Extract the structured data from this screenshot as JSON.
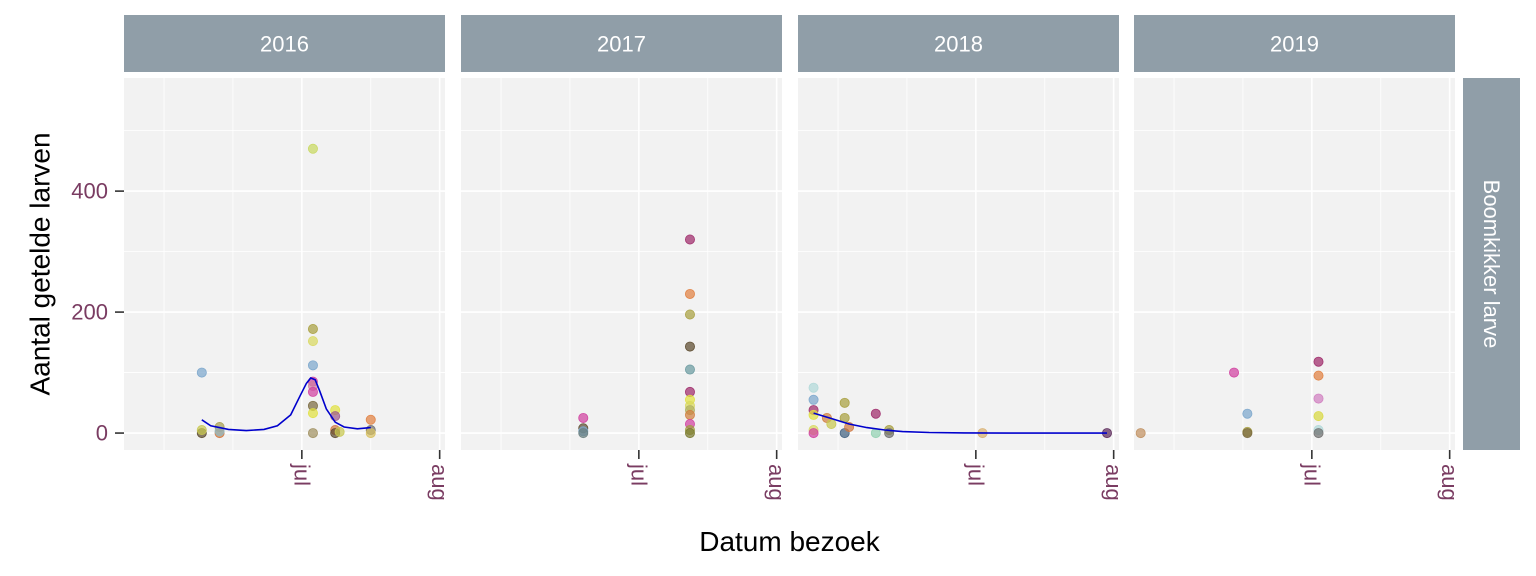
{
  "chart_data": {
    "type": "scatter",
    "xlabel": "Datum bezoek",
    "ylabel": "Aantal getelde larven",
    "facet_row_label": "Boomkikker larve",
    "y_ticks": [
      0,
      200,
      400
    ],
    "y_range": [
      -28,
      587
    ],
    "x_range_day_of_year": [
      142.5,
      214.7
    ],
    "x_tick_labels": [
      {
        "label": "jul",
        "doy": 182.5
      },
      {
        "label": "aug",
        "doy": 213.5
      }
    ],
    "grid": true,
    "colors": {
      "strip_bg": "#909ea8",
      "panel_bg": "#f2f2f2",
      "grid": "#ffffff",
      "tick_label": "#7a3c62",
      "trend": "#0000cc"
    },
    "panels": [
      {
        "year": "2016",
        "points": [
          {
            "doy": 160,
            "y": 100,
            "c": "#7ba6cc"
          },
          {
            "doy": 160,
            "y": 0,
            "c": "#5c4a2e"
          },
          {
            "doy": 160,
            "y": 5,
            "c": "#c8c850"
          },
          {
            "doy": 164,
            "y": 10,
            "c": "#a8a050"
          },
          {
            "doy": 164,
            "y": 0,
            "c": "#d07840"
          },
          {
            "doy": 164,
            "y": 3,
            "c": "#90b8c0"
          },
          {
            "doy": 185,
            "y": 470,
            "c": "#c8d860"
          },
          {
            "doy": 185,
            "y": 172,
            "c": "#a8a040"
          },
          {
            "doy": 185,
            "y": 152,
            "c": "#d8d860"
          },
          {
            "doy": 185,
            "y": 112,
            "c": "#7ba6cc"
          },
          {
            "doy": 185,
            "y": 85,
            "c": "#d040a0"
          },
          {
            "doy": 185,
            "y": 78,
            "c": "#d080a0"
          },
          {
            "doy": 185,
            "y": 68,
            "c": "#d040a0"
          },
          {
            "doy": 185,
            "y": 45,
            "c": "#7a6a40"
          },
          {
            "doy": 185,
            "y": 33,
            "c": "#e0e040"
          },
          {
            "doy": 185,
            "y": 0,
            "c": "#a09060"
          },
          {
            "doy": 190,
            "y": 38,
            "c": "#e0e040"
          },
          {
            "doy": 190,
            "y": 28,
            "c": "#9e5a8a"
          },
          {
            "doy": 190,
            "y": 5,
            "c": "#d07840"
          },
          {
            "doy": 190,
            "y": 0,
            "c": "#5c4a2e"
          },
          {
            "doy": 191,
            "y": 2,
            "c": "#c8c850"
          },
          {
            "doy": 198,
            "y": 22,
            "c": "#e08040"
          },
          {
            "doy": 198,
            "y": 5,
            "c": "#707070"
          },
          {
            "doy": 198,
            "y": 0,
            "c": "#d8c060"
          }
        ],
        "trend": [
          [
            160,
            22
          ],
          [
            162,
            12
          ],
          [
            166,
            6
          ],
          [
            170,
            4
          ],
          [
            174,
            6
          ],
          [
            177,
            12
          ],
          [
            180,
            30
          ],
          [
            182,
            60
          ],
          [
            183.5,
            82
          ],
          [
            184.5,
            91
          ],
          [
            185.5,
            88
          ],
          [
            186.5,
            70
          ],
          [
            188,
            40
          ],
          [
            190,
            18
          ],
          [
            192,
            10
          ],
          [
            195,
            7
          ],
          [
            198,
            9
          ]
        ]
      },
      {
        "year": "2017",
        "points": [
          {
            "doy": 170,
            "y": 25,
            "c": "#d040a0"
          },
          {
            "doy": 170,
            "y": 8,
            "c": "#5c4a2e"
          },
          {
            "doy": 170,
            "y": 3,
            "c": "#7ba6cc"
          },
          {
            "doy": 170,
            "y": 0,
            "c": "#6a8080"
          },
          {
            "doy": 194,
            "y": 320,
            "c": "#9e2a6a"
          },
          {
            "doy": 194,
            "y": 230,
            "c": "#e08040"
          },
          {
            "doy": 194,
            "y": 196,
            "c": "#a8a040"
          },
          {
            "doy": 194,
            "y": 143,
            "c": "#5c4a2e"
          },
          {
            "doy": 194,
            "y": 105,
            "c": "#6a9aa0"
          },
          {
            "doy": 194,
            "y": 68,
            "c": "#9e2a6a"
          },
          {
            "doy": 194,
            "y": 55,
            "c": "#e0e040"
          },
          {
            "doy": 194,
            "y": 45,
            "c": "#d8d860"
          },
          {
            "doy": 194,
            "y": 38,
            "c": "#b0b060"
          },
          {
            "doy": 194,
            "y": 30,
            "c": "#d08040"
          },
          {
            "doy": 194,
            "y": 15,
            "c": "#d040a0"
          },
          {
            "doy": 194,
            "y": 5,
            "c": "#a0a040"
          },
          {
            "doy": 194,
            "y": 0,
            "c": "#7a7a30"
          }
        ],
        "trend": []
      },
      {
        "year": "2018",
        "points": [
          {
            "doy": 146,
            "y": 75,
            "c": "#b0d8d8"
          },
          {
            "doy": 146,
            "y": 55,
            "c": "#7ba6cc"
          },
          {
            "doy": 146,
            "y": 38,
            "c": "#9e2a6a"
          },
          {
            "doy": 146,
            "y": 30,
            "c": "#e0e040"
          },
          {
            "doy": 146,
            "y": 5,
            "c": "#d8d860"
          },
          {
            "doy": 146,
            "y": 0,
            "c": "#d040a0"
          },
          {
            "doy": 149,
            "y": 25,
            "c": "#d08040"
          },
          {
            "doy": 150,
            "y": 15,
            "c": "#c8c850"
          },
          {
            "doy": 153,
            "y": 50,
            "c": "#a8a040"
          },
          {
            "doy": 153,
            "y": 25,
            "c": "#a8a040"
          },
          {
            "doy": 153,
            "y": 0,
            "c": "#406080"
          },
          {
            "doy": 154,
            "y": 10,
            "c": "#d07840"
          },
          {
            "doy": 160,
            "y": 32,
            "c": "#9e2a6a"
          },
          {
            "doy": 160,
            "y": 0,
            "c": "#90d0b0"
          },
          {
            "doy": 163,
            "y": 5,
            "c": "#a8a040"
          },
          {
            "doy": 163,
            "y": 0,
            "c": "#707070"
          },
          {
            "doy": 184,
            "y": 0,
            "c": "#d8b070"
          },
          {
            "doy": 212,
            "y": 0,
            "c": "#5c2a5a"
          }
        ],
        "trend": [
          [
            146,
            33
          ],
          [
            150,
            24
          ],
          [
            154,
            15
          ],
          [
            158,
            9
          ],
          [
            162,
            5
          ],
          [
            166,
            2.5
          ],
          [
            172,
            1
          ],
          [
            180,
            0.3
          ],
          [
            190,
            0
          ],
          [
            212,
            0
          ]
        ]
      },
      {
        "year": "2019",
        "points": [
          {
            "doy": 144,
            "y": 0,
            "c": "#c09060"
          },
          {
            "doy": 165,
            "y": 100,
            "c": "#d040a0"
          },
          {
            "doy": 168,
            "y": 32,
            "c": "#7ba6cc"
          },
          {
            "doy": 168,
            "y": 2,
            "c": "#a8a040"
          },
          {
            "doy": 168,
            "y": 0,
            "c": "#7a6a40"
          },
          {
            "doy": 184,
            "y": 118,
            "c": "#9e2a6a"
          },
          {
            "doy": 184,
            "y": 95,
            "c": "#e08040"
          },
          {
            "doy": 184,
            "y": 57,
            "c": "#d080c0"
          },
          {
            "doy": 184,
            "y": 28,
            "c": "#d8d840"
          },
          {
            "doy": 184,
            "y": 5,
            "c": "#b0d8d8"
          },
          {
            "doy": 184,
            "y": 0,
            "c": "#707070"
          }
        ],
        "trend": []
      }
    ]
  }
}
